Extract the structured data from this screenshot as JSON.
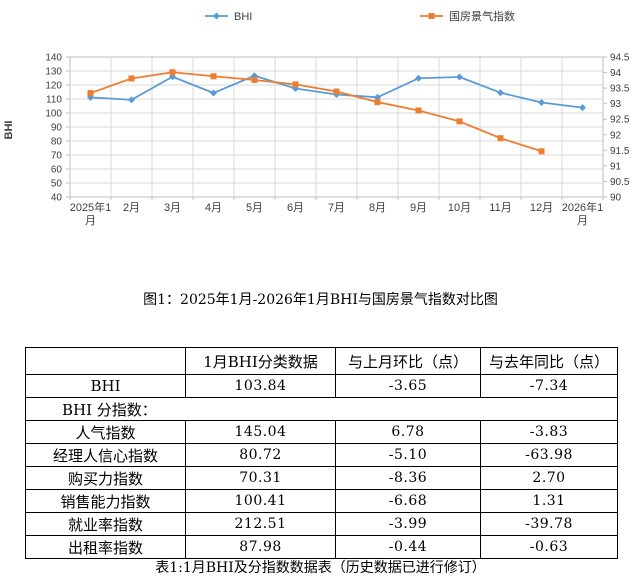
{
  "chart": {
    "y_axis_title": "BHI",
    "left_axis": {
      "min": 40,
      "max": 140,
      "step": 10
    },
    "right_axis": {
      "min": 90,
      "max": 94.5,
      "step": 0.5
    },
    "colors": {
      "bhi_line": "#5B9BD5",
      "climate_line": "#ED7D31",
      "gridline": "#D9D9D9",
      "axis": "#BFBFBF",
      "tick_text": "#404040"
    }
  },
  "chart_data": {
    "type": "line",
    "title": "图1：2025年1月-2026年1月BHI与国房景气指数对比图",
    "categories": [
      "2025年1月",
      "2月",
      "3月",
      "4月",
      "5月",
      "6月",
      "7月",
      "8月",
      "9月",
      "10月",
      "11月",
      "12月",
      "2026年1月"
    ],
    "left_ylim": [
      40,
      140
    ],
    "right_ylim": [
      90,
      94.5
    ],
    "grid": true,
    "legend_position": "top",
    "series": [
      {
        "name": "BHI",
        "axis": "left",
        "color": "#5B9BD5",
        "marker": "diamond",
        "values": [
          111.18,
          109.4,
          125.9,
          114.3,
          126.6,
          117.5,
          113.2,
          111.2,
          124.8,
          125.7,
          114.5,
          107.49,
          103.84
        ]
      },
      {
        "name": "国房景气指数",
        "axis": "right",
        "color": "#ED7D31",
        "marker": "square",
        "values": [
          93.34,
          93.81,
          94.01,
          93.88,
          93.76,
          93.62,
          93.39,
          93.05,
          92.78,
          92.43,
          91.89,
          91.47,
          null
        ]
      }
    ]
  },
  "figure_caption": "图1：2025年1月-2026年1月BHI与国房景气指数对比图",
  "table": {
    "headers": [
      "",
      "1月BHI分类数据",
      "与上月环比（点）",
      "与去年同比（点）"
    ],
    "rows": [
      {
        "label": "BHI",
        "merged": false,
        "values": [
          "103.84",
          "-3.65",
          "-7.34"
        ]
      },
      {
        "label": "BHI 分指数：",
        "merged": true,
        "values": []
      },
      {
        "label": "人气指数",
        "merged": false,
        "values": [
          "145.04",
          "6.78",
          "-3.83"
        ]
      },
      {
        "label": "经理人信心指数",
        "merged": false,
        "values": [
          "80.72",
          "-5.10",
          "-63.98"
        ]
      },
      {
        "label": "购买力指数",
        "merged": false,
        "values": [
          "70.31",
          "-8.36",
          "2.70"
        ]
      },
      {
        "label": "销售能力指数",
        "merged": false,
        "values": [
          "100.41",
          "-6.68",
          "1.31"
        ]
      },
      {
        "label": "就业率指数",
        "merged": false,
        "values": [
          "212.51",
          "-3.99",
          "-39.78"
        ]
      },
      {
        "label": "出租率指数",
        "merged": false,
        "values": [
          "87.98",
          "-0.44",
          "-0.63"
        ]
      }
    ],
    "caption": "表1:1月BHI及分指数数据表（历史数据已进行修订）"
  }
}
